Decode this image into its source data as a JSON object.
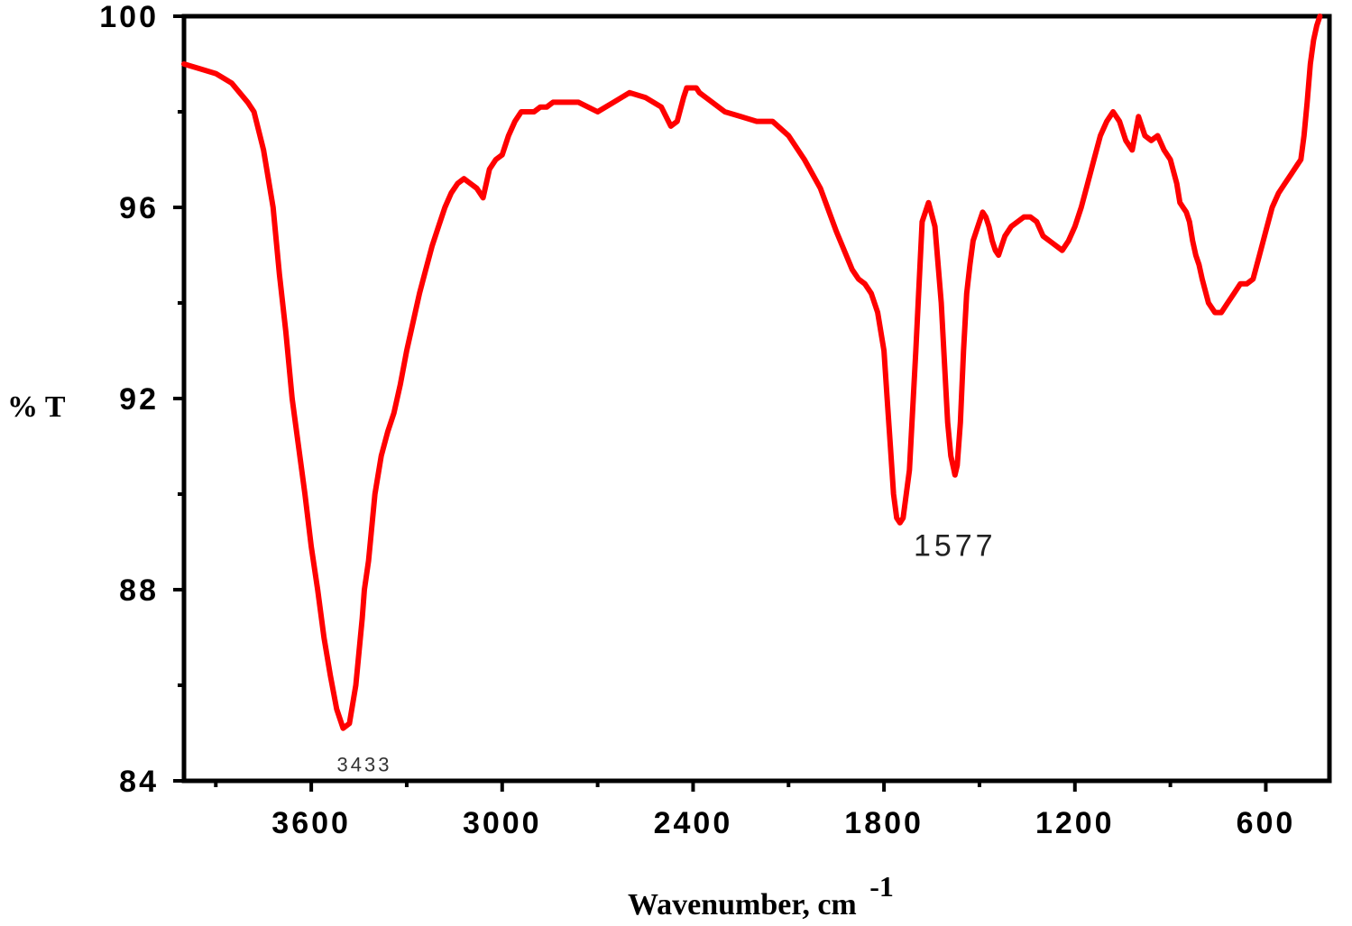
{
  "chart_data": {
    "type": "line",
    "title": "",
    "xlabel": "Wavenumber, cm",
    "xlabel_superscript": "-1",
    "ylabel": "% T",
    "xlim": [
      4000,
      400
    ],
    "ylim": [
      84,
      100
    ],
    "x_reversed": true,
    "x_ticks": [
      3600,
      3000,
      2400,
      1800,
      1200,
      600
    ],
    "y_ticks": [
      84,
      88,
      92,
      96,
      100
    ],
    "x_tick_labels": [
      "3600",
      "3000",
      "2400",
      "1800",
      "1200",
      "600"
    ],
    "y_tick_labels": [
      "84",
      "88",
      "92",
      "96",
      "100"
    ],
    "grid": false,
    "line_color": "#ff0000",
    "annotations": [
      {
        "text": "3433",
        "x": 3433,
        "y": 84.8,
        "style": "small"
      },
      {
        "text": "1577",
        "x": 1577,
        "y": 88.8,
        "style": "large"
      }
    ],
    "series": [
      {
        "x": [
          4000,
          3950,
          3900,
          3850,
          3800,
          3780,
          3750,
          3720,
          3700,
          3680,
          3660,
          3640,
          3620,
          3600,
          3580,
          3560,
          3540,
          3520,
          3500,
          3480,
          3460,
          3440,
          3433,
          3420,
          3400,
          3380,
          3360,
          3340,
          3320,
          3300,
          3280,
          3260,
          3240,
          3220,
          3200,
          3180,
          3160,
          3140,
          3120,
          3100,
          3080,
          3060,
          3040,
          3020,
          3000,
          2980,
          2960,
          2940,
          2920,
          2900,
          2880,
          2860,
          2840,
          2820,
          2800,
          2760,
          2700,
          2650,
          2600,
          2550,
          2500,
          2470,
          2450,
          2430,
          2420,
          2410,
          2400,
          2390,
          2380,
          2360,
          2340,
          2300,
          2250,
          2200,
          2150,
          2100,
          2050,
          2000,
          1950,
          1900,
          1880,
          1860,
          1840,
          1820,
          1800,
          1790,
          1780,
          1770,
          1760,
          1750,
          1740,
          1720,
          1700,
          1680,
          1660,
          1640,
          1620,
          1600,
          1590,
          1580,
          1577,
          1570,
          1560,
          1550,
          1540,
          1530,
          1520,
          1500,
          1490,
          1480,
          1470,
          1460,
          1450,
          1440,
          1430,
          1420,
          1400,
          1380,
          1360,
          1340,
          1320,
          1300,
          1280,
          1260,
          1240,
          1220,
          1200,
          1180,
          1160,
          1140,
          1120,
          1100,
          1080,
          1060,
          1040,
          1020,
          1000,
          980,
          960,
          940,
          920,
          900,
          880,
          870,
          860,
          850,
          840,
          830,
          820,
          810,
          800,
          780,
          760,
          740,
          720,
          700,
          680,
          660,
          640,
          620,
          600,
          580,
          560,
          540,
          520,
          500,
          490,
          480,
          470,
          460,
          450,
          440,
          430
        ],
        "y": [
          99.0,
          98.9,
          98.8,
          98.6,
          98.2,
          98.0,
          97.2,
          96.0,
          94.6,
          93.4,
          92.0,
          91.0,
          90.0,
          88.9,
          88.0,
          87.0,
          86.2,
          85.5,
          85.1,
          85.2,
          86.0,
          87.4,
          88.0,
          88.6,
          90.0,
          90.8,
          91.3,
          91.7,
          92.3,
          93.0,
          93.6,
          94.2,
          94.7,
          95.2,
          95.6,
          96.0,
          96.3,
          96.5,
          96.6,
          96.5,
          96.4,
          96.2,
          96.8,
          97.0,
          97.1,
          97.5,
          97.8,
          98.0,
          98.0,
          98.0,
          98.1,
          98.1,
          98.2,
          98.2,
          98.2,
          98.2,
          98.0,
          98.2,
          98.4,
          98.3,
          98.1,
          97.7,
          97.8,
          98.3,
          98.5,
          98.5,
          98.5,
          98.5,
          98.4,
          98.3,
          98.2,
          98.0,
          97.9,
          97.8,
          97.8,
          97.5,
          97.0,
          96.4,
          95.5,
          94.7,
          94.5,
          94.4,
          94.2,
          93.8,
          93.0,
          92.0,
          91.0,
          90.0,
          89.5,
          89.4,
          89.5,
          90.5,
          93.0,
          95.7,
          96.1,
          95.6,
          94.0,
          91.5,
          90.8,
          90.5,
          90.4,
          90.6,
          91.5,
          93.0,
          94.2,
          94.8,
          95.3,
          95.7,
          95.9,
          95.8,
          95.6,
          95.3,
          95.1,
          95.0,
          95.2,
          95.4,
          95.6,
          95.7,
          95.8,
          95.8,
          95.7,
          95.4,
          95.3,
          95.2,
          95.1,
          95.3,
          95.6,
          96.0,
          96.5,
          97.0,
          97.5,
          97.8,
          98.0,
          97.8,
          97.4,
          97.2,
          97.9,
          97.5,
          97.4,
          97.5,
          97.2,
          97.0,
          96.5,
          96.1,
          96.0,
          95.9,
          95.7,
          95.3,
          95.0,
          94.8,
          94.5,
          94.0,
          93.8,
          93.8,
          94.0,
          94.2,
          94.4,
          94.4,
          94.5,
          95.0,
          95.5,
          96.0,
          96.3,
          96.5,
          96.7,
          96.9,
          97.0,
          97.5,
          98.2,
          99.0,
          99.5,
          99.8,
          100.0
        ]
      }
    ]
  }
}
